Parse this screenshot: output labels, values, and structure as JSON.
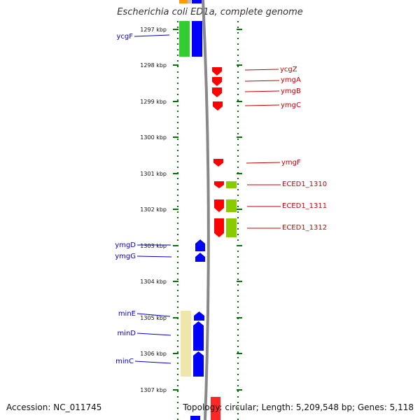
{
  "title": "Escherichia coli ED1a, complete genome",
  "accession": "Accession: NC_011745",
  "topology": "Topology: circular; Length: 5,209,548 bp; Genes: 5,118",
  "colors": {
    "forward_gene": "#ff0000",
    "reverse_gene": "#0000ff",
    "left_label": "#0000cc",
    "right_label": "#cc0000",
    "tick": "#007700",
    "backbone": "#888888",
    "operon_green": "#33cc33",
    "operon_yellow": "#eee6aa",
    "operon_lime": "#88cc00",
    "top_orange": "#ff9900",
    "top_gray": "#bbbbbb"
  },
  "scale": {
    "unit": "kbp",
    "ticks": [
      "1297 kbp",
      "1298 kbp",
      "1299 kbp",
      "1300 kbp",
      "1301 kbp",
      "1302 kbp",
      "1303 kbp",
      "1304 kbp",
      "1305 kbp",
      "1306 kbp",
      "1307 kbp"
    ]
  },
  "left_labels": [
    "ycgF",
    "ymgD",
    "ymgG",
    "minE",
    "minD",
    "minC"
  ],
  "right_labels": [
    "ycgZ",
    "ymgA",
    "ymgB",
    "ymgC",
    "ymgF",
    "ECED1_1310",
    "ECED1_1311",
    "ECED1_1312"
  ]
}
